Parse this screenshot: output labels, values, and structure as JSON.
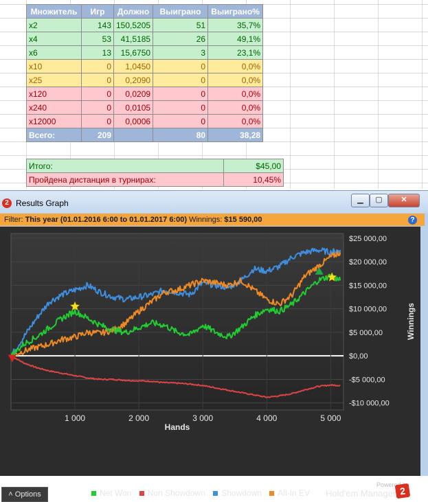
{
  "sheet": {
    "headers": [
      "Множитель",
      "Игр",
      "Должно",
      "Выиграно",
      "Выиграно%"
    ],
    "rows": [
      {
        "mult": "x2",
        "games": "143",
        "expected": "150,5205",
        "won": "51",
        "pct": "35,7%",
        "tone": "green"
      },
      {
        "mult": "x4",
        "games": "53",
        "expected": "41,5185",
        "won": "26",
        "pct": "49,1%",
        "tone": "green"
      },
      {
        "mult": "x6",
        "games": "13",
        "expected": "15,6750",
        "won": "3",
        "pct": "23,1%",
        "tone": "green"
      },
      {
        "mult": "x10",
        "games": "0",
        "expected": "1,0450",
        "won": "0",
        "pct": "0,0%",
        "tone": "yellow"
      },
      {
        "mult": "x25",
        "games": "0",
        "expected": "0,2090",
        "won": "0",
        "pct": "0,0%",
        "tone": "yellow"
      },
      {
        "mult": "x120",
        "games": "0",
        "expected": "0,0209",
        "won": "0",
        "pct": "0,0%",
        "tone": "red"
      },
      {
        "mult": "x240",
        "games": "0",
        "expected": "0,0105",
        "won": "0",
        "pct": "0,0%",
        "tone": "red"
      },
      {
        "mult": "x12000",
        "games": "0",
        "expected": "0,0006",
        "won": "0",
        "pct": "0,0%",
        "tone": "red"
      }
    ],
    "total": {
      "label": "Всего:",
      "games": "209",
      "expected": "",
      "won": "80",
      "pct": "38,28"
    },
    "summary": {
      "itogo_label": "Итого:",
      "itogo_value": "$45,00",
      "distance_label": "Пройдена дистанция в турнирах:",
      "distance_value": "10,45%"
    }
  },
  "window": {
    "title": "Results Graph",
    "logo_text": "2",
    "min_glyph": "▁",
    "max_glyph": "▢",
    "close_glyph": "✕",
    "filter": {
      "prefix": "Filter:",
      "range": "This year (01.01.2016 6:00 to 01.01.2017 6:00)",
      "winnings_label": "Winnings:",
      "winnings_value": "$15 590,00"
    },
    "help_glyph": "?",
    "options_label": "Options",
    "options_glyph": "˄",
    "powered_by": "Powered by",
    "brand": "Hold'em Manager",
    "brand_logo": "2"
  },
  "chart_data": {
    "type": "line",
    "xlabel": "Hands",
    "ylabel": "Winnings",
    "xlim": [
      0,
      5200
    ],
    "ylim": [
      -11500,
      26000
    ],
    "x_ticks": [
      1000,
      2000,
      3000,
      4000,
      5000
    ],
    "x_tick_labels": [
      "1 000",
      "2 000",
      "3 000",
      "4 000",
      "5 000"
    ],
    "y_ticks": [
      25000,
      20000,
      15000,
      10000,
      5000,
      0,
      -5000,
      -10000
    ],
    "y_tick_labels": [
      "$25 000,00",
      "$20 000,00",
      "$15 000,00",
      "$10 000,00",
      "$5 000,00",
      "$0,00",
      "-$5 000,00",
      "-$10 000,00"
    ],
    "colors": {
      "net_won": "#22cc33",
      "non_showdown": "#dd4444",
      "showdown": "#3f8fe0",
      "all_in_ev": "#f08a24"
    },
    "series": [
      {
        "name": "Net Won",
        "color": "#22cc33",
        "x": [
          0,
          200,
          400,
          600,
          800,
          1000,
          1200,
          1400,
          1600,
          1800,
          2000,
          2200,
          2400,
          2600,
          2800,
          3000,
          3200,
          3400,
          3600,
          3800,
          4000,
          4200,
          4400,
          4600,
          4800,
          5000,
          5150
        ],
        "y": [
          0,
          2500,
          4000,
          6000,
          8000,
          9500,
          8000,
          6500,
          5500,
          5000,
          6000,
          7000,
          6500,
          5000,
          4500,
          6500,
          5000,
          4000,
          6000,
          8500,
          10000,
          9500,
          11000,
          13500,
          16000,
          17000,
          16000
        ]
      },
      {
        "name": "Non Showdown",
        "color": "#dd4444",
        "x": [
          0,
          200,
          400,
          600,
          800,
          1000,
          1200,
          1400,
          1600,
          1800,
          2000,
          2200,
          2400,
          2600,
          2800,
          3000,
          3200,
          3400,
          3600,
          3800,
          4000,
          4200,
          4400,
          4600,
          4800,
          5000,
          5150
        ],
        "y": [
          0,
          -1500,
          -2500,
          -3200,
          -3700,
          -4200,
          -4700,
          -5000,
          -5000,
          -5200,
          -5300,
          -5400,
          -5700,
          -5800,
          -6000,
          -6300,
          -6800,
          -7300,
          -7800,
          -8300,
          -8800,
          -8500,
          -8000,
          -7200,
          -6500,
          -6200,
          -6300
        ]
      },
      {
        "name": "Showdown",
        "color": "#3f8fe0",
        "x": [
          0,
          200,
          400,
          600,
          800,
          1000,
          1200,
          1400,
          1600,
          1800,
          2000,
          2200,
          2400,
          2600,
          2800,
          3000,
          3200,
          3400,
          3600,
          3800,
          4000,
          4200,
          4400,
          4600,
          4800,
          5000,
          5150
        ],
        "y": [
          0,
          4000,
          8000,
          11500,
          13000,
          14000,
          15000,
          13500,
          12500,
          12000,
          12500,
          13000,
          14000,
          13500,
          13000,
          15500,
          15000,
          14500,
          16000,
          18500,
          18000,
          19000,
          21000,
          22000,
          22500,
          22000,
          22500
        ]
      },
      {
        "name": "All-In EV",
        "color": "#f08a24",
        "x": [
          0,
          200,
          400,
          600,
          800,
          1000,
          1200,
          1400,
          1600,
          1800,
          2000,
          2200,
          2400,
          2600,
          2800,
          3000,
          3200,
          3400,
          3600,
          3800,
          4000,
          4200,
          4400,
          4600,
          4800,
          5000,
          5150
        ],
        "y": [
          0,
          1000,
          1800,
          2500,
          3500,
          4000,
          5000,
          4800,
          5500,
          7000,
          9500,
          11500,
          13500,
          14000,
          15000,
          16000,
          15500,
          15000,
          16000,
          14000,
          12000,
          11000,
          13000,
          17000,
          19000,
          21000,
          22000
        ]
      }
    ],
    "markers": [
      {
        "kind": "star",
        "color": "#f6e01c",
        "x": 1000,
        "y": 10500
      },
      {
        "kind": "star",
        "color": "#f6e01c",
        "x": 5020,
        "y": 16700
      },
      {
        "kind": "triangle-down",
        "color": "#dd2222",
        "x": 20,
        "y": -500
      },
      {
        "kind": "triangle-up",
        "color": "#1fa84a",
        "x": 4820,
        "y": 18000
      }
    ],
    "legend_position": "bottom-center",
    "grid": true
  }
}
